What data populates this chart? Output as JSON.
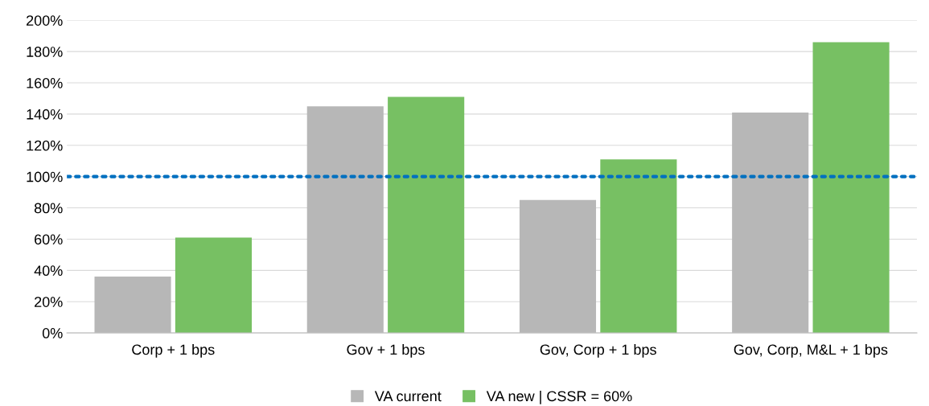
{
  "chart_data": {
    "type": "bar",
    "categories": [
      "Corp + 1 bps",
      "Gov + 1 bps",
      "Gov, Corp + 1 bps",
      "Gov, Corp, M&L + 1 bps"
    ],
    "series": [
      {
        "name": "VA current",
        "color": "#b7b7b7",
        "values": [
          36,
          145,
          85,
          141
        ]
      },
      {
        "name": "VA new | CSSR = 60%",
        "color": "#77c063",
        "values": [
          61,
          151,
          111,
          186
        ]
      }
    ],
    "ylim": [
      0,
      200
    ],
    "yticks": [
      {
        "value": 0,
        "label": "0%"
      },
      {
        "value": 20,
        "label": "20%"
      },
      {
        "value": 40,
        "label": "40%"
      },
      {
        "value": 60,
        "label": "60%"
      },
      {
        "value": 80,
        "label": "80%"
      },
      {
        "value": 100,
        "label": "100%"
      },
      {
        "value": 120,
        "label": "120%"
      },
      {
        "value": 140,
        "label": "140%"
      },
      {
        "value": 160,
        "label": "160%"
      },
      {
        "value": 180,
        "label": "180%"
      },
      {
        "value": 200,
        "label": "200%"
      }
    ],
    "ref_lines": [
      {
        "axis": "y",
        "value": 100,
        "color": "#0070c0",
        "line_style": "dotted"
      }
    ],
    "grid": "y",
    "legend": "bottom"
  }
}
